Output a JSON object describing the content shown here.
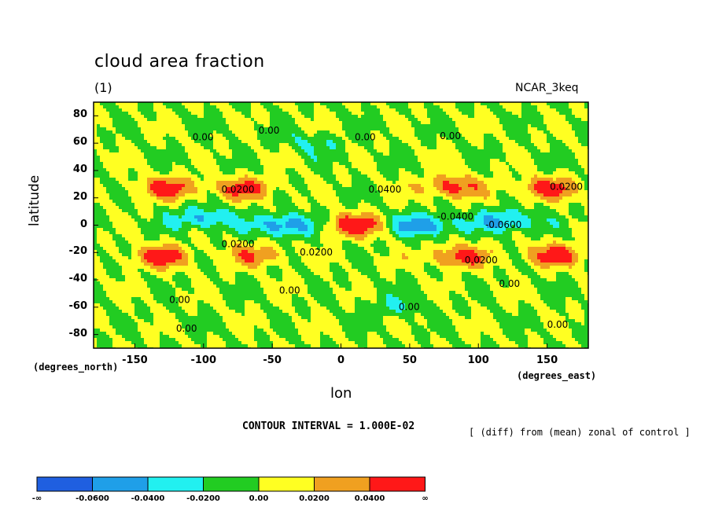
{
  "chart_data": {
    "type": "heatmap",
    "title": "cloud area fraction",
    "subtitle": "(1)",
    "model_label": "NCAR_3keq",
    "xlabel": "lon",
    "ylabel": "latitude",
    "x_units": "(degrees_east)",
    "y_units": "(degrees_north)",
    "xlim": [
      -180,
      180
    ],
    "ylim": [
      -90,
      90
    ],
    "x_ticks": [
      "-150",
      "-100",
      "-50",
      "0",
      "50",
      "100",
      "150"
    ],
    "x_tick_values": [
      -150,
      -100,
      -50,
      0,
      50,
      100,
      150
    ],
    "y_ticks": [
      "80",
      "60",
      "40",
      "20",
      "0",
      "-20",
      "-40",
      "-60",
      "-80"
    ],
    "y_tick_values": [
      80,
      60,
      40,
      20,
      0,
      -20,
      -40,
      -60,
      -80
    ],
    "contour_interval_text": "CONTOUR INTERVAL = 1.000E-02",
    "note": "[ (diff) from (mean) zonal of control ]",
    "colorbar": {
      "colors": [
        "#1f5fe0",
        "#1f9fe8",
        "#22f0f0",
        "#22cc22",
        "#ffff22",
        "#f0a020",
        "#ff1818"
      ],
      "labels": [
        "-∞",
        "-0.0600",
        "-0.0400",
        "-0.0200",
        "0.00",
        "0.0200",
        "0.0400",
        "∞"
      ]
    },
    "field": {
      "background_level": 0.0,
      "features": [
        {
          "lon": -125,
          "lat": 27,
          "value": 0.05
        },
        {
          "lon": -70,
          "lat": 27,
          "value": 0.045
        },
        {
          "lon": 80,
          "lat": 28,
          "value": 0.05
        },
        {
          "lon": 150,
          "lat": 27,
          "value": 0.05
        },
        {
          "lon": -130,
          "lat": -23,
          "value": 0.05
        },
        {
          "lon": -60,
          "lat": -22,
          "value": 0.035
        },
        {
          "lon": 85,
          "lat": -23,
          "value": 0.05
        },
        {
          "lon": 155,
          "lat": -22,
          "value": 0.05
        },
        {
          "lon": 10,
          "lat": 0,
          "value": 0.06
        },
        {
          "lon": -100,
          "lat": 5,
          "value": -0.045
        },
        {
          "lon": -40,
          "lat": 0,
          "value": -0.06
        },
        {
          "lon": 60,
          "lat": 0,
          "value": -0.06
        },
        {
          "lon": 120,
          "lat": 3,
          "value": -0.05
        },
        {
          "lon": -20,
          "lat": 60,
          "value": -0.02
        },
        {
          "lon": 40,
          "lat": -60,
          "value": -0.02
        }
      ]
    },
    "contour_labels": [
      {
        "lon": -108,
        "lat": 62,
        "text": "0.00"
      },
      {
        "lon": -60,
        "lat": 67,
        "text": "0.00"
      },
      {
        "lon": 10,
        "lat": 62,
        "text": "0.00"
      },
      {
        "lon": 72,
        "lat": 63,
        "text": "0.00"
      },
      {
        "lon": -87,
        "lat": 24,
        "text": "0.0200"
      },
      {
        "lon": 152,
        "lat": 26,
        "text": "0.0200"
      },
      {
        "lon": 20,
        "lat": 24,
        "text": "0.0400"
      },
      {
        "lon": 70,
        "lat": 4,
        "text": "-0.0400"
      },
      {
        "lon": 105,
        "lat": -2,
        "text": "-0.0600"
      },
      {
        "lon": -87,
        "lat": -16,
        "text": "0.0200"
      },
      {
        "lon": -30,
        "lat": -22,
        "text": "0.0200"
      },
      {
        "lon": 90,
        "lat": -28,
        "text": "0.0200"
      },
      {
        "lon": -45,
        "lat": -50,
        "text": "0.00"
      },
      {
        "lon": 115,
        "lat": -45,
        "text": "0.00"
      },
      {
        "lon": -125,
        "lat": -57,
        "text": "0.00"
      },
      {
        "lon": -120,
        "lat": -78,
        "text": "0.00"
      },
      {
        "lon": 42,
        "lat": -62,
        "text": "0.00"
      },
      {
        "lon": 150,
        "lat": -75,
        "text": "0.00"
      }
    ]
  }
}
